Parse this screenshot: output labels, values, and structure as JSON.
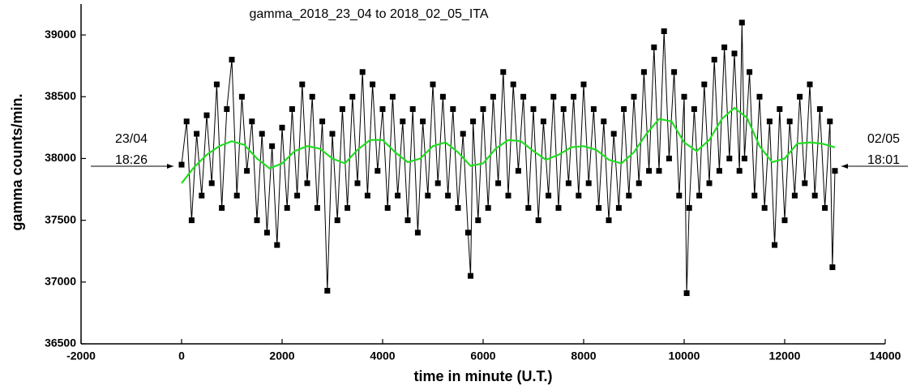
{
  "chart_data": {
    "type": "scatter",
    "title": "gamma_2018_23_04 to 2018_02_05_ITA",
    "x_label": "time in minute (U.T.)",
    "y_label": "gamma counts/min.",
    "xlim": [
      -2000,
      14000
    ],
    "ylim": [
      36500,
      39250
    ],
    "xticks": [
      -2000,
      0,
      2000,
      4000,
      6000,
      8000,
      10000,
      12000,
      14000
    ],
    "yticks": [
      36500,
      37000,
      37500,
      38000,
      38500,
      39000
    ],
    "annotations": [
      {
        "lines": [
          "23/04",
          "18:26"
        ],
        "side": "left"
      },
      {
        "lines": [
          "02/05",
          "18:01"
        ],
        "side": "right"
      }
    ],
    "series": [
      {
        "color": "#000000",
        "marker": "square",
        "connect": true,
        "x": [
          0,
          100,
          200,
          300,
          400,
          500,
          600,
          700,
          800,
          900,
          1000,
          1100,
          1200,
          1300,
          1400,
          1500,
          1600,
          1700,
          1800,
          1900,
          2000,
          2100,
          2200,
          2300,
          2400,
          2500,
          2600,
          2700,
          2800,
          2900,
          3000,
          3100,
          3200,
          3300,
          3400,
          3500,
          3600,
          3700,
          3800,
          3900,
          4000,
          4100,
          4200,
          4300,
          4400,
          4500,
          4600,
          4700,
          4800,
          4900,
          5000,
          5100,
          5200,
          5300,
          5400,
          5500,
          5600,
          5700,
          5750,
          5800,
          5900,
          6000,
          6100,
          6200,
          6300,
          6400,
          6500,
          6600,
          6700,
          6800,
          6900,
          7000,
          7100,
          7200,
          7300,
          7400,
          7500,
          7600,
          7700,
          7800,
          7900,
          8000,
          8100,
          8200,
          8300,
          8400,
          8500,
          8600,
          8700,
          8800,
          8900,
          9000,
          9100,
          9200,
          9300,
          9400,
          9500,
          9600,
          9700,
          9800,
          9900,
          10000,
          10050,
          10100,
          10200,
          10300,
          10400,
          10500,
          10600,
          10700,
          10800,
          10900,
          11000,
          11100,
          11150,
          11200,
          11300,
          11400,
          11500,
          11600,
          11700,
          11800,
          11900,
          12000,
          12100,
          12200,
          12300,
          12400,
          12500,
          12600,
          12700,
          12800,
          12900,
          12950,
          13000
        ],
        "values": [
          37950,
          38300,
          37500,
          38200,
          37700,
          38350,
          37800,
          38600,
          37600,
          38400,
          38800,
          37700,
          38500,
          37900,
          38300,
          37500,
          38200,
          37400,
          38100,
          37300,
          38250,
          37600,
          38400,
          37700,
          38600,
          37800,
          38500,
          37600,
          38300,
          36930,
          38200,
          37500,
          38400,
          37600,
          38500,
          37800,
          38700,
          37700,
          38600,
          37900,
          38400,
          37600,
          38500,
          37700,
          38300,
          37500,
          38400,
          37400,
          38300,
          37700,
          38600,
          37800,
          38500,
          37700,
          38400,
          37600,
          38200,
          37400,
          37050,
          38300,
          37500,
          38400,
          37600,
          38500,
          37800,
          38700,
          37700,
          38600,
          37900,
          38500,
          37600,
          38400,
          37500,
          38300,
          37700,
          38500,
          37600,
          38400,
          37800,
          38500,
          37700,
          38600,
          37800,
          38400,
          37600,
          38300,
          37500,
          38200,
          37600,
          38400,
          37700,
          38500,
          37800,
          38700,
          37900,
          38900,
          37900,
          39030,
          38000,
          38700,
          37700,
          38500,
          36910,
          37600,
          38400,
          37700,
          38600,
          37800,
          38800,
          37900,
          38900,
          38000,
          38850,
          37900,
          39100,
          38000,
          38700,
          37700,
          38500,
          37600,
          38300,
          37300,
          38400,
          37500,
          38300,
          37700,
          38500,
          37800,
          38600,
          37700,
          38400,
          37600,
          38300,
          37120,
          37900
        ]
      },
      {
        "color": "#22dd22",
        "marker": "none",
        "connect": true,
        "x": [
          0,
          250,
          500,
          750,
          1000,
          1250,
          1500,
          1750,
          2000,
          2250,
          2500,
          2750,
          3000,
          3250,
          3500,
          3750,
          4000,
          4250,
          4500,
          4750,
          5000,
          5250,
          5500,
          5750,
          6000,
          6250,
          6500,
          6750,
          7000,
          7250,
          7500,
          7750,
          8000,
          8250,
          8500,
          8750,
          9000,
          9250,
          9500,
          9750,
          10000,
          10250,
          10500,
          10750,
          11000,
          11250,
          11500,
          11750,
          12000,
          12250,
          12500,
          12750,
          13000
        ],
        "values": [
          37800,
          37930,
          38030,
          38100,
          38140,
          38110,
          38000,
          37920,
          37960,
          38060,
          38100,
          38080,
          38000,
          37960,
          38070,
          38150,
          38150,
          38050,
          37970,
          38000,
          38100,
          38130,
          38050,
          37940,
          37960,
          38080,
          38150,
          38140,
          38060,
          37990,
          38030,
          38090,
          38100,
          38070,
          37990,
          37960,
          38050,
          38200,
          38320,
          38300,
          38130,
          38060,
          38150,
          38320,
          38410,
          38330,
          38100,
          37970,
          38000,
          38120,
          38130,
          38120,
          38090
        ]
      }
    ]
  }
}
